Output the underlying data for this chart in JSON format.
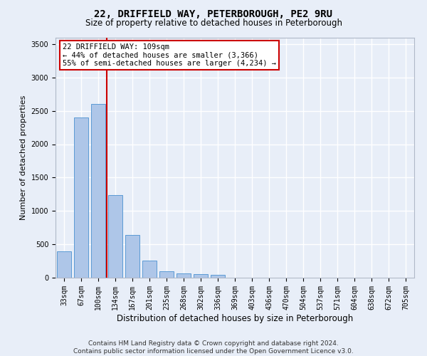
{
  "title": "22, DRIFFIELD WAY, PETERBOROUGH, PE2 9RU",
  "subtitle": "Size of property relative to detached houses in Peterborough",
  "xlabel": "Distribution of detached houses by size in Peterborough",
  "ylabel": "Number of detached properties",
  "footer_line1": "Contains HM Land Registry data © Crown copyright and database right 2024.",
  "footer_line2": "Contains public sector information licensed under the Open Government Licence v3.0.",
  "categories": [
    "33sqm",
    "67sqm",
    "100sqm",
    "134sqm",
    "167sqm",
    "201sqm",
    "235sqm",
    "268sqm",
    "302sqm",
    "336sqm",
    "369sqm",
    "403sqm",
    "436sqm",
    "470sqm",
    "504sqm",
    "537sqm",
    "571sqm",
    "604sqm",
    "638sqm",
    "672sqm",
    "705sqm"
  ],
  "bar_values": [
    390,
    2400,
    2600,
    1240,
    640,
    255,
    95,
    60,
    55,
    40,
    0,
    0,
    0,
    0,
    0,
    0,
    0,
    0,
    0,
    0,
    0
  ],
  "bar_color": "#aec6e8",
  "bar_edge_color": "#5b9bd5",
  "background_color": "#e8eef8",
  "grid_color": "#ffffff",
  "ylim": [
    0,
    3600
  ],
  "yticks": [
    0,
    500,
    1000,
    1500,
    2000,
    2500,
    3000,
    3500
  ],
  "vline_color": "#cc0000",
  "vline_x_index": 2.5,
  "annotation_text_line1": "22 DRIFFIELD WAY: 109sqm",
  "annotation_text_line2": "← 44% of detached houses are smaller (3,366)",
  "annotation_text_line3": "55% of semi-detached houses are larger (4,234) →",
  "annotation_box_color": "#ffffff",
  "annotation_box_edge_color": "#cc0000",
  "title_fontsize": 10,
  "subtitle_fontsize": 8.5,
  "ylabel_fontsize": 8,
  "xlabel_fontsize": 8.5,
  "tick_fontsize": 7,
  "footer_fontsize": 6.5
}
